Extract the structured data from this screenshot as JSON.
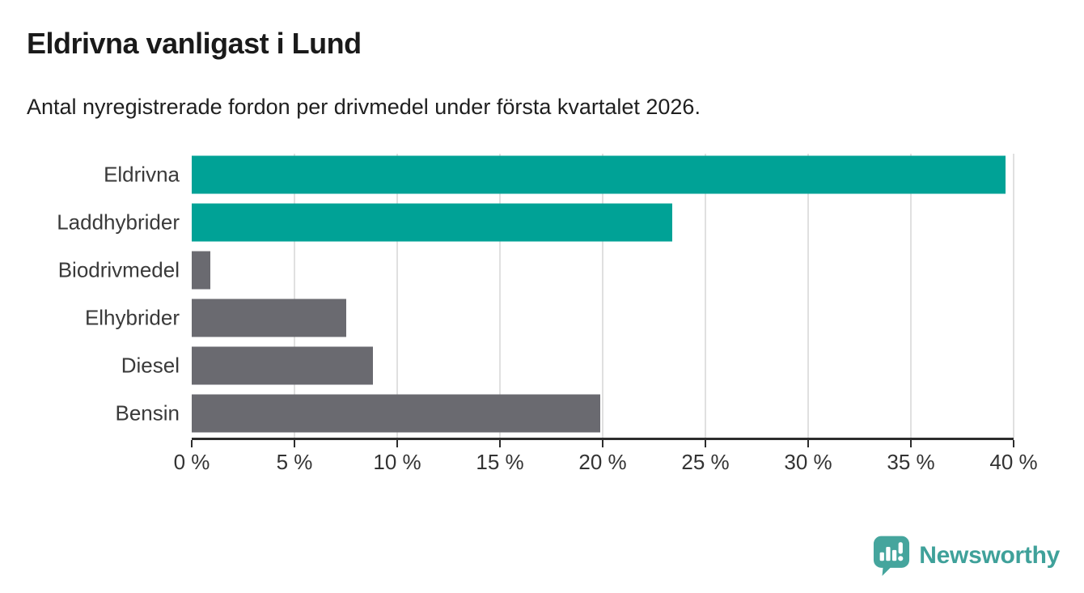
{
  "header": {
    "title": "Eldrivna vanligast i Lund",
    "subtitle": "Antal nyregistrerade fordon per drivmedel under första kvartalet 2026."
  },
  "chart_data": {
    "type": "bar",
    "orientation": "horizontal",
    "title": "Eldrivna vanligast i Lund",
    "subtitle": "Antal nyregistrerade fordon per drivmedel under första kvartalet 2026.",
    "categories": [
      "Eldrivna",
      "Laddhybrider",
      "Biodrivmedel",
      "Elhybrider",
      "Diesel",
      "Bensin"
    ],
    "values": [
      39.6,
      23.4,
      0.9,
      7.5,
      8.8,
      19.9
    ],
    "bar_colors": [
      "#00a296",
      "#00a296",
      "#6a6a70",
      "#6a6a70",
      "#6a6a70",
      "#6a6a70"
    ],
    "unit": "%",
    "xlim": [
      0,
      40
    ],
    "x_ticks": [
      0,
      5,
      10,
      15,
      20,
      25,
      30,
      35,
      40
    ],
    "x_tick_labels": [
      "0 %",
      "5 %",
      "10 %",
      "15 %",
      "20 %",
      "25 %",
      "30 %",
      "35 %",
      "40 %"
    ],
    "grid": "vertical",
    "legend": "none"
  },
  "colors": {
    "highlight": "#00a296",
    "neutral": "#6a6a70",
    "gridline": "#e0e0e0",
    "axis": "#2d2d2d",
    "logo": "#45a59d"
  },
  "branding": {
    "logo_text": "Newsworthy"
  }
}
